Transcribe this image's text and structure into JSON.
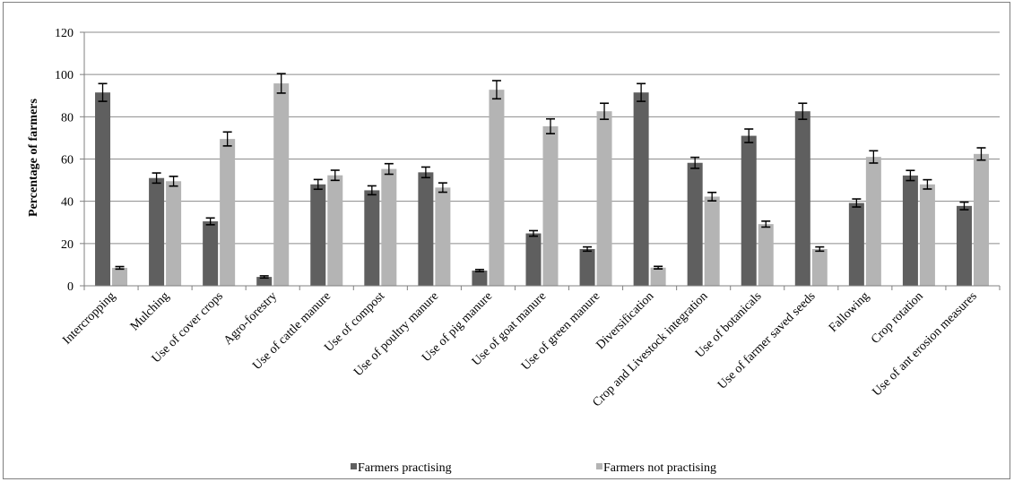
{
  "chart_data": {
    "type": "bar",
    "ylabel": "Percentage of farmers",
    "xlabel": "",
    "ylim": [
      0,
      120
    ],
    "yticks": [
      "0",
      "20",
      "40",
      "60",
      "80",
      "100",
      "120"
    ],
    "grid": true,
    "legend_position": "bottom",
    "categories": [
      "Intercropping",
      "Mulching",
      "Use of cover crops",
      "Agro-forestry",
      "Use of cattle manure",
      "Use of compost",
      "Use of poultry manure",
      "Use of pig manure",
      "Use of goat manure",
      "Use of green manure",
      "Diversification",
      "Crop and Livestock integration",
      "Use of botanicals",
      "Use of farmer saved seeds",
      "Fallowing",
      "Crop rotation",
      "Use of ant erosion measures"
    ],
    "series": [
      {
        "name": "Farmers practising",
        "color": "#5f5f5f",
        "values": [
          91.5,
          51,
          30.5,
          4.2,
          48,
          45.2,
          53.7,
          7.2,
          24.8,
          17.4,
          91.5,
          58.2,
          71,
          82.6,
          39.2,
          52.2,
          37.8
        ],
        "errors": [
          4.2,
          2.4,
          1.6,
          0.5,
          2.3,
          2.1,
          2.5,
          0.5,
          1.3,
          1.0,
          4.2,
          2.6,
          3.2,
          3.8,
          1.9,
          2.4,
          1.8
        ]
      },
      {
        "name": "Farmers not practising",
        "color": "#b4b4b4",
        "values": [
          8.5,
          49.5,
          69.5,
          95.8,
          52.3,
          55.3,
          46.5,
          92.8,
          75.5,
          82.6,
          8.6,
          42.2,
          29.2,
          17.4,
          61,
          48,
          62.4
        ],
        "errors": [
          0.6,
          2.3,
          3.3,
          4.6,
          2.4,
          2.5,
          2.2,
          4.3,
          3.5,
          3.8,
          0.6,
          2.0,
          1.4,
          1.0,
          2.9,
          2.2,
          2.9
        ]
      }
    ]
  }
}
